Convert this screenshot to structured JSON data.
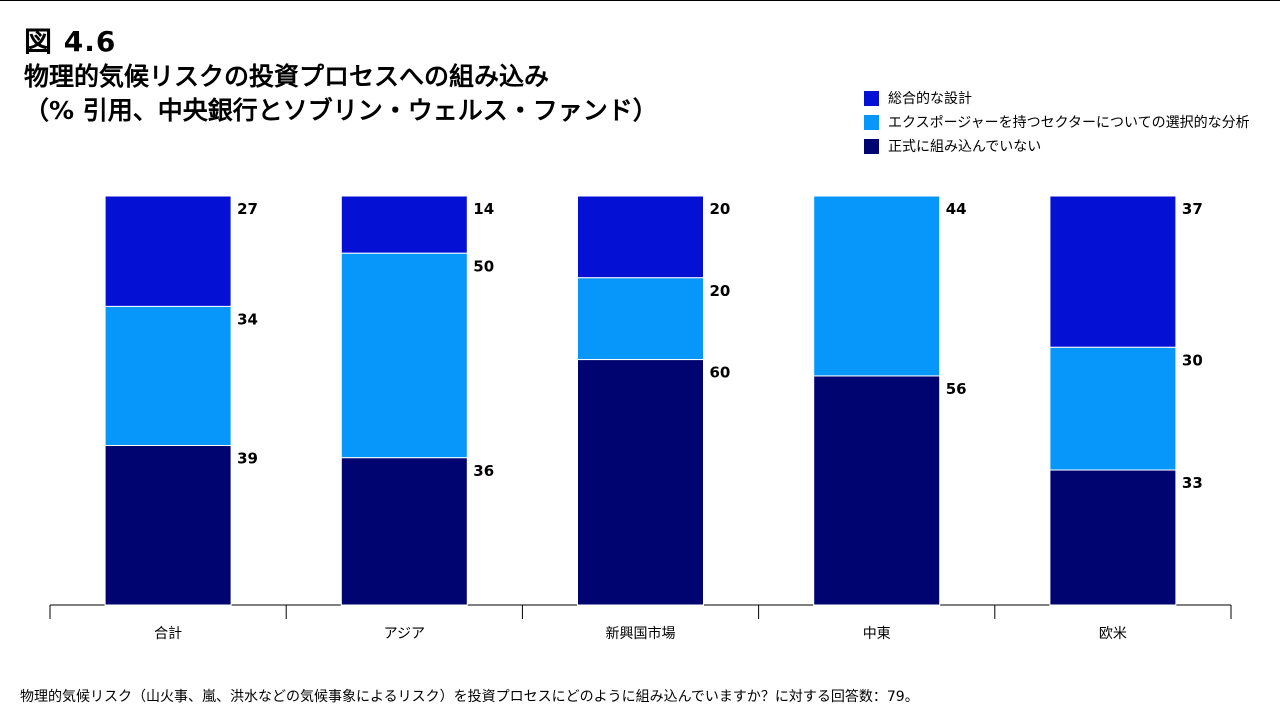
{
  "figure_number": "図 4.6",
  "title_lines": [
    "物理的気候リスクの投資プロセスへの組み込み",
    "（% 引用、中央銀行とソブリン・ウェルス・ファンド）"
  ],
  "legend": [
    {
      "label": "総合的な設計",
      "color": "#0410D4"
    },
    {
      "label": "エクスポージャーを持つセクターについての選択的な分析",
      "color": "#0797FB"
    },
    {
      "label": "正式に組み込んでいない",
      "color": "#000470"
    }
  ],
  "footnote": "物理的気候リスク（山火事、嵐、洪水などの気候事象によるリスク）を投資プロセスにどのように組み込んでいますか？に対する回答数：79。",
  "chart_data": {
    "type": "bar",
    "stacked": true,
    "categories": [
      "合計",
      "アジア",
      "新興国市場",
      "中東",
      "欧米"
    ],
    "series": [
      {
        "name": "総合的な設計",
        "color": "#0410D4",
        "values": [
          27,
          14,
          20,
          0,
          37
        ]
      },
      {
        "name": "エクスポージャーを持つセクターについての選択的な分析",
        "color": "#0797FB",
        "values": [
          34,
          50,
          20,
          44,
          30
        ]
      },
      {
        "name": "正式に組み込んでいない",
        "color": "#000470",
        "values": [
          39,
          36,
          60,
          56,
          33
        ]
      }
    ],
    "ylim": [
      0,
      100
    ],
    "legend_position": "top-right"
  }
}
